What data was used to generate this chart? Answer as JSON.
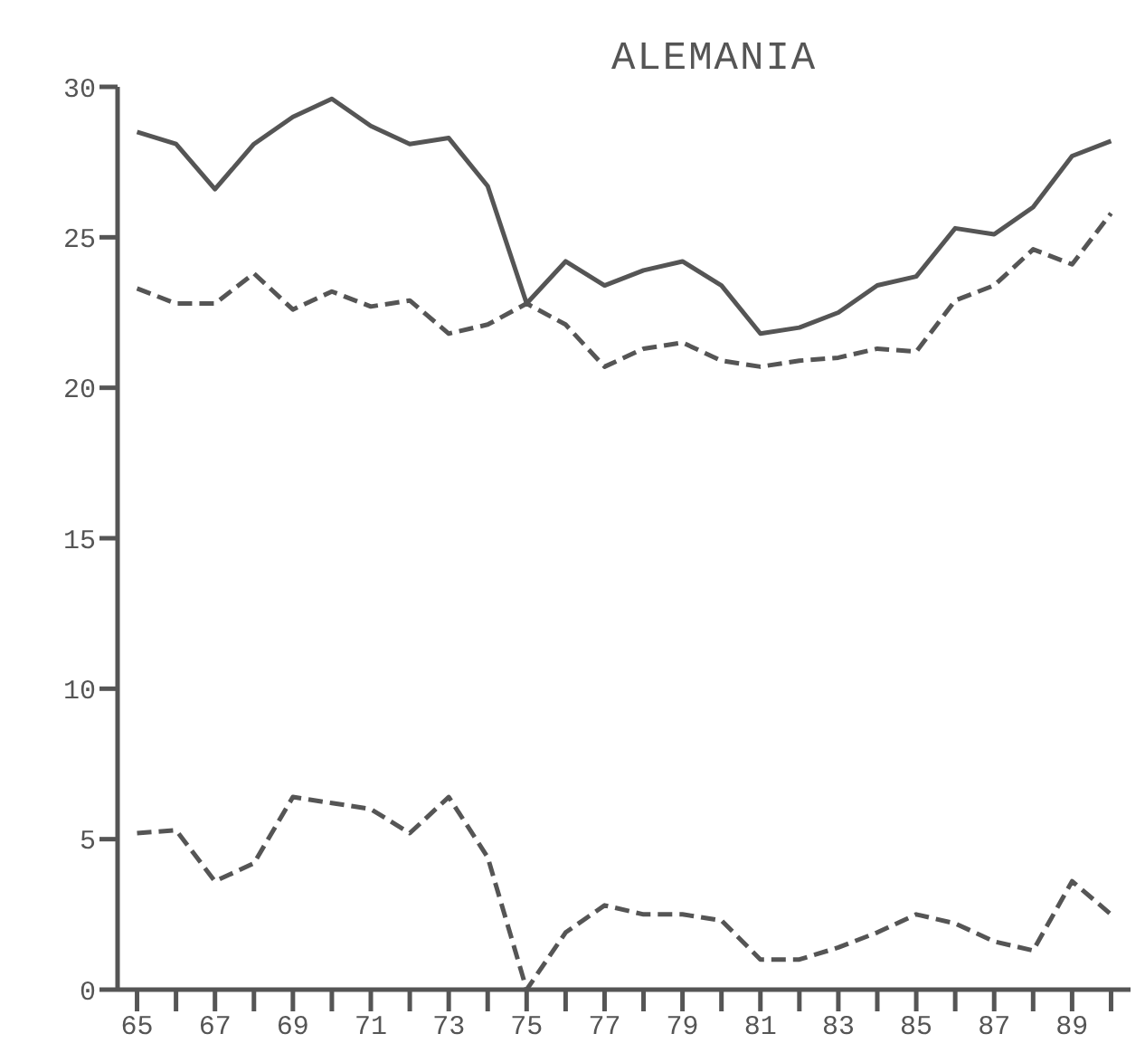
{
  "chart_data": {
    "type": "line",
    "title": "ALEMANIA",
    "x": [
      65,
      66,
      67,
      68,
      69,
      70,
      71,
      72,
      73,
      74,
      75,
      76,
      77,
      78,
      79,
      80,
      81,
      82,
      83,
      84,
      85,
      86,
      87,
      88,
      89,
      90
    ],
    "series": [
      {
        "color": "#555555",
        "line_style": "solid",
        "values": [
          28.5,
          28.1,
          26.6,
          28.1,
          29.0,
          29.6,
          28.7,
          28.1,
          28.3,
          26.7,
          22.8,
          24.2,
          23.4,
          23.9,
          24.2,
          23.4,
          21.8,
          22.0,
          22.5,
          23.4,
          23.7,
          25.3,
          25.1,
          26.0,
          27.7,
          28.2
        ]
      },
      {
        "color": "#555555",
        "line_style": "dashed",
        "values": [
          23.3,
          22.8,
          22.8,
          23.8,
          22.6,
          23.2,
          22.7,
          22.9,
          21.8,
          22.1,
          22.8,
          22.1,
          20.7,
          21.3,
          21.5,
          20.9,
          20.7,
          20.9,
          21.0,
          21.3,
          21.2,
          22.9,
          23.4,
          24.6,
          24.1,
          25.8
        ]
      },
      {
        "color": "#555555",
        "line_style": "dashed",
        "values": [
          5.2,
          5.3,
          3.6,
          4.2,
          6.4,
          6.2,
          6.0,
          5.2,
          6.4,
          4.4,
          0,
          1.9,
          2.8,
          2.5,
          2.5,
          2.3,
          1.0,
          1.0,
          1.4,
          1.9,
          2.5,
          2.2,
          1.6,
          1.3,
          3.6,
          2.5
        ]
      }
    ],
    "xlim": [
      64.5,
      90.5
    ],
    "xticks": [
      65,
      {
        "value": 66,
        "label": null
      },
      67,
      {
        "value": 68,
        "label": null
      },
      69,
      {
        "value": 70,
        "label": null
      },
      71,
      {
        "value": 72,
        "label": null
      },
      73,
      {
        "value": 74,
        "label": null
      },
      75,
      {
        "value": 76,
        "label": null
      },
      77,
      {
        "value": 78,
        "label": null
      },
      79,
      {
        "value": 80,
        "label": null
      },
      81,
      {
        "value": 82,
        "label": null
      },
      83,
      {
        "value": 84,
        "label": null
      },
      85,
      {
        "value": 86,
        "label": null
      },
      87,
      {
        "value": 88,
        "label": null
      },
      89,
      {
        "value": 90,
        "label": null
      }
    ],
    "ylim": [
      0,
      30
    ],
    "yticks": [
      0,
      5,
      10,
      15,
      20,
      25,
      30
    ],
    "grid": false,
    "legend": false,
    "marker": "none"
  }
}
